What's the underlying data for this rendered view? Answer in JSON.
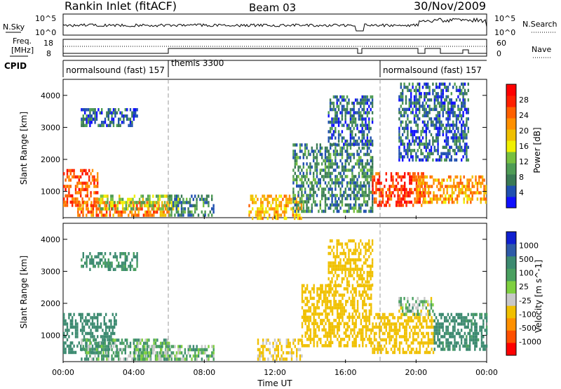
{
  "header": {
    "station_title": "Rankin Inlet (fitACF)",
    "beam_label": "Beam 03",
    "date_label": "30/Nov/2009"
  },
  "top_panels": {
    "nsky_label": "N.Sky",
    "nsearch_label": "N.Search",
    "noise_ticks": [
      "10^5",
      "10^0"
    ],
    "freq_label_line1": "Freq.",
    "freq_label_line2": "[MHz]",
    "freq_ticks": [
      "18",
      "8"
    ],
    "nave_label": "Nave",
    "nave_ticks": [
      "60",
      "0"
    ],
    "cpid_label": "CPID",
    "cpid_segments": [
      {
        "label": "normalsound (fast) 157",
        "start_hour": 0,
        "end_hour": 6
      },
      {
        "label": "themis 3300",
        "start_hour": 6,
        "end_hour": 18
      },
      {
        "label": "normalsound (fast) 157",
        "start_hour": 18,
        "end_hour": 24
      }
    ]
  },
  "colorbars": {
    "power": {
      "label": "Power [dB]",
      "ticks": [
        "4",
        "8",
        "12",
        "16",
        "20",
        "24",
        "28"
      ],
      "colors": [
        "#1010ff",
        "#2050b0",
        "#3a7a55",
        "#4f9c55",
        "#78c040",
        "#f0f000",
        "#f0c000",
        "#ff9000",
        "#ff6000",
        "#ff2000",
        "#ff0000"
      ]
    },
    "velocity": {
      "label": "Velocity [m s^-1]",
      "ticks": [
        "1000",
        "500",
        "100",
        "25",
        "-25",
        "-100",
        "-500",
        "-1000"
      ],
      "colors": [
        "#1020d0",
        "#2e5aa8",
        "#3c8a70",
        "#4aa060",
        "#7fd040",
        "#c8c8c8",
        "#f0c000",
        "#ff9000",
        "#ff5000",
        "#ff0000"
      ]
    }
  },
  "chart_data": [
    {
      "type": "heatmap",
      "title": "Power",
      "xlabel": "Time UT",
      "ylabel": "Slant Range [km]",
      "x_ticks": [
        "00:00",
        "04:00",
        "08:00",
        "12:00",
        "16:00",
        "20:00",
        "00:00"
      ],
      "y_ticks": [
        "1000",
        "2000",
        "3000",
        "4000"
      ],
      "xlim_hours": [
        0,
        24
      ],
      "ylim_km": [
        180,
        4500
      ],
      "colorbar": "Power [dB]",
      "regions": [
        {
          "t0": 0.0,
          "t1": 2.0,
          "r0": 600,
          "r1": 1700,
          "value_db": 26
        },
        {
          "t0": 0.8,
          "t1": 6.0,
          "r0": 300,
          "r1": 700,
          "value_db": 24
        },
        {
          "t0": 2.0,
          "t1": 6.5,
          "r0": 500,
          "r1": 900,
          "value_db": 14
        },
        {
          "t0": 6.0,
          "t1": 8.5,
          "r0": 300,
          "r1": 900,
          "value_db": 8
        },
        {
          "t0": 1.0,
          "t1": 4.2,
          "r0": 3100,
          "r1": 3600,
          "value_db": 6
        },
        {
          "t0": 10.5,
          "t1": 13.5,
          "r0": 200,
          "r1": 900,
          "value_db": 20
        },
        {
          "t0": 13.0,
          "t1": 17.5,
          "r0": 400,
          "r1": 2500,
          "value_db": 8
        },
        {
          "t0": 17.5,
          "t1": 20.5,
          "r0": 600,
          "r1": 1600,
          "value_db": 28
        },
        {
          "t0": 20.0,
          "t1": 24.0,
          "r0": 700,
          "r1": 1500,
          "value_db": 22
        },
        {
          "t0": 15.0,
          "t1": 17.5,
          "r0": 2500,
          "r1": 4000,
          "value_db": 6
        },
        {
          "t0": 19.0,
          "t1": 23.0,
          "r0": 2000,
          "r1": 4400,
          "value_db": 6
        }
      ]
    },
    {
      "type": "heatmap",
      "title": "Velocity",
      "xlabel": "Time UT",
      "ylabel": "Slant Range [km]",
      "x_ticks": [
        "00:00",
        "04:00",
        "08:00",
        "12:00",
        "16:00",
        "20:00",
        "00:00"
      ],
      "y_ticks": [
        "1000",
        "2000",
        "3000",
        "4000"
      ],
      "xlim_hours": [
        0,
        24
      ],
      "ylim_km": [
        180,
        4500
      ],
      "colorbar": "Velocity [m s^-1]",
      "regions": [
        {
          "t0": 0.0,
          "t1": 3.0,
          "r0": 500,
          "r1": 1700,
          "value_ms": 250
        },
        {
          "t0": 1.0,
          "t1": 6.0,
          "r0": 300,
          "r1": 900,
          "value_ms": 60
        },
        {
          "t0": 4.0,
          "t1": 8.5,
          "r0": 300,
          "r1": 700,
          "value_ms": 40
        },
        {
          "t0": 1.0,
          "t1": 4.2,
          "r0": 3100,
          "r1": 3600,
          "value_ms": 150
        },
        {
          "t0": 11.0,
          "t1": 13.5,
          "r0": 300,
          "r1": 900,
          "value_ms": -150
        },
        {
          "t0": 13.5,
          "t1": 17.5,
          "r0": 700,
          "r1": 2600,
          "value_ms": -300
        },
        {
          "t0": 17.5,
          "t1": 21.0,
          "r0": 500,
          "r1": 1700,
          "value_ms": -250
        },
        {
          "t0": 19.0,
          "t1": 21.0,
          "r0": 1700,
          "r1": 2200,
          "value_ms": 0
        },
        {
          "t0": 21.0,
          "t1": 24.0,
          "r0": 600,
          "r1": 1700,
          "value_ms": 200
        },
        {
          "t0": 15.0,
          "t1": 17.5,
          "r0": 2600,
          "r1": 4000,
          "value_ms": -300
        }
      ]
    }
  ]
}
